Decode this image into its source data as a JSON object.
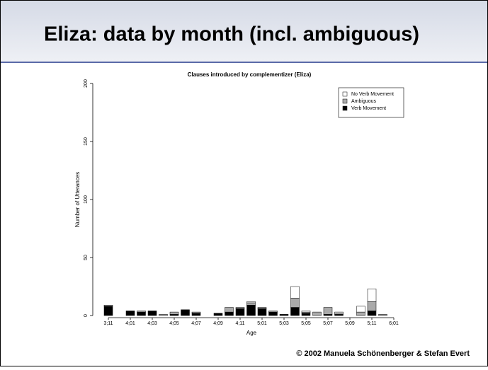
{
  "header": {
    "title": "Eliza: data by month (incl. ambiguous)"
  },
  "chart_data": {
    "type": "bar",
    "stacked": true,
    "title": "Clauses introduced by complementizer (Eliza)",
    "xlabel": "Age",
    "ylabel": "Number of Utterances",
    "categories": [
      "3;11",
      null,
      "4;01",
      null,
      "4;03",
      null,
      "4;05",
      null,
      "4;07",
      null,
      "4;09",
      null,
      "4;11",
      null,
      "5;01",
      null,
      "5;03",
      null,
      "5;05",
      null,
      "5;07",
      null,
      "5;09",
      null,
      "5;11",
      null,
      "6;01"
    ],
    "series": [
      {
        "name": "No Verb Movement",
        "color": "#ffffff",
        "values": [
          0,
          0,
          0,
          0,
          0,
          0,
          0,
          0,
          0,
          0,
          0,
          0,
          0,
          1,
          0,
          0,
          0,
          10,
          1,
          0,
          0,
          1,
          0,
          5,
          11,
          0,
          0
        ]
      },
      {
        "name": "Ambiguous",
        "color": "#aaaaaa",
        "values": [
          1,
          0,
          0,
          1,
          0,
          1,
          2,
          0,
          1,
          0,
          0,
          4,
          1,
          2,
          1,
          1,
          0,
          8,
          1,
          3,
          6,
          1,
          0,
          3,
          8,
          1,
          0
        ]
      },
      {
        "name": "Verb Movement",
        "color": "#000000",
        "values": [
          8,
          0,
          4,
          3,
          4,
          0,
          1,
          5,
          2,
          0,
          2,
          3,
          6,
          9,
          6,
          3,
          1,
          7,
          2,
          0,
          1,
          1,
          0,
          0,
          4,
          0,
          0
        ]
      }
    ],
    "ylim": [
      0,
      200
    ],
    "yticks": [
      0,
      50,
      100,
      150,
      200
    ],
    "legend": "top-right"
  },
  "footer": {
    "text": "© 2002  Manuela Schönenberger  & Stefan Evert"
  }
}
